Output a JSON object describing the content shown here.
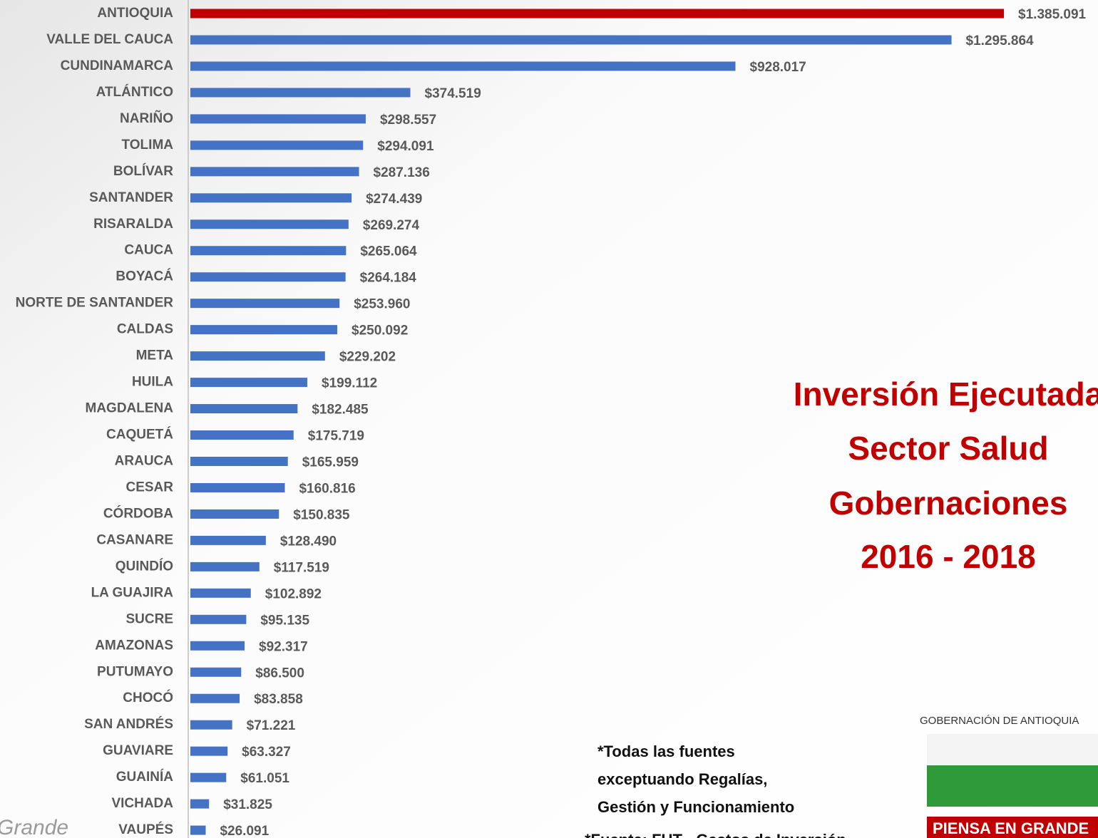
{
  "chart_data": {
    "type": "barh",
    "title": [
      "Inversión Ejecutada",
      "Sector Salud",
      "Gobernaciones",
      "2016 - 2018"
    ],
    "note": [
      "*Todas las fuentes",
      "exceptuando Regalías,",
      "Gestión y Funcionamiento"
    ],
    "source": "*Fuente: FUT - Gastos de Inversión",
    "logo": {
      "top": "GOBERNACIÓN DE ANTIOQUIA",
      "bottom": "PIENSA EN GRANDE"
    },
    "watermark": "Grande",
    "categories": [
      "ANTIOQUIA",
      "VALLE DEL CAUCA",
      "CUNDINAMARCA",
      "ATLÁNTICO",
      "NARIÑO",
      "TOLIMA",
      "BOLÍVAR",
      "SANTANDER",
      "RISARALDA",
      "CAUCA",
      "BOYACÁ",
      "NORTE DE SANTANDER",
      "CALDAS",
      "META",
      "HUILA",
      "MAGDALENA",
      "CAQUETÁ",
      "ARAUCA",
      "CESAR",
      "CÓRDOBA",
      "CASANARE",
      "QUINDÍO",
      "LA GUAJIRA",
      "SUCRE",
      "AMAZONAS",
      "PUTUMAYO",
      "CHOCÓ",
      "SAN ANDRÉS",
      "GUAVIARE",
      "GUAINÍA",
      "VICHADA",
      "VAUPÉS"
    ],
    "values": [
      1385091,
      1295864,
      928017,
      374519,
      298557,
      294091,
      287136,
      274439,
      269274,
      265064,
      264184,
      253960,
      250092,
      229202,
      199112,
      182485,
      175719,
      165959,
      160816,
      150835,
      128490,
      117519,
      102892,
      95135,
      92317,
      86500,
      83858,
      71221,
      63327,
      61051,
      31825,
      26091
    ],
    "value_labels": [
      "$1.385.091",
      "$1.295.864",
      "$928.017",
      "$374.519",
      "$298.557",
      "$294.091",
      "$287.136",
      "$274.439",
      "$269.274",
      "$265.064",
      "$264.184",
      "$253.960",
      "$250.092",
      "$229.202",
      "$199.112",
      "$182.485",
      "$175.719",
      "$165.959",
      "$160.816",
      "$150.835",
      "$128.490",
      "$117.519",
      "$102.892",
      "$95.135",
      "$92.317",
      "$86.500",
      "$83.858",
      "$71.221",
      "$63.327",
      "$61.051",
      "$31.825",
      "$26.091"
    ],
    "colors": [
      "#c00000",
      "#4472c4",
      "#4472c4",
      "#4472c4",
      "#4472c4",
      "#4472c4",
      "#4472c4",
      "#4472c4",
      "#4472c4",
      "#4472c4",
      "#4472c4",
      "#4472c4",
      "#4472c4",
      "#4472c4",
      "#4472c4",
      "#4472c4",
      "#4472c4",
      "#4472c4",
      "#4472c4",
      "#4472c4",
      "#4472c4",
      "#4472c4",
      "#4472c4",
      "#4472c4",
      "#4472c4",
      "#4472c4",
      "#4472c4",
      "#4472c4",
      "#4472c4",
      "#4472c4",
      "#4472c4",
      "#4472c4"
    ],
    "xlim": [
      0,
      1600000
    ]
  }
}
